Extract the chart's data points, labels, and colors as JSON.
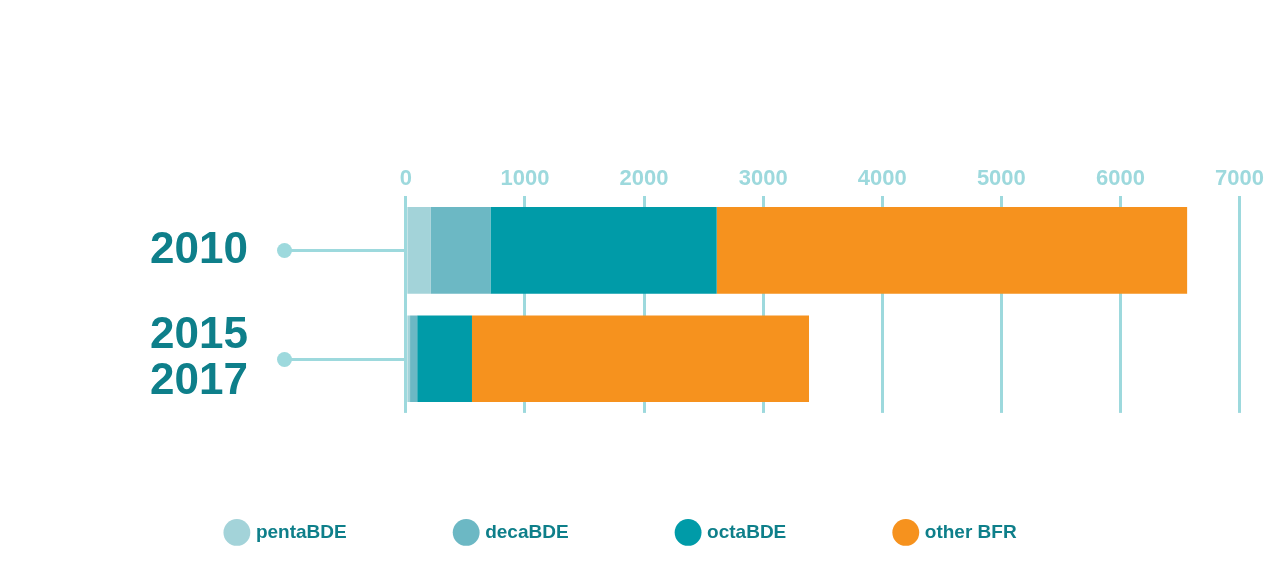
{
  "chart_data": {
    "type": "bar",
    "orientation": "horizontal",
    "stacked": true,
    "categories": [
      "2010",
      "2015\n2017"
    ],
    "series": [
      {
        "name": "pentaBDE",
        "color": "#a3d3d9",
        "values": [
          210,
          35
        ]
      },
      {
        "name": "decaBDE",
        "color": "#6cb8c4",
        "values": [
          500,
          60
        ]
      },
      {
        "name": "octaBDE",
        "color": "#009ba8",
        "values": [
          1900,
          460
        ]
      },
      {
        "name": "other BFR",
        "color": "#f6921e",
        "values": [
          3950,
          2830
        ]
      }
    ],
    "xlim": [
      0,
      7000
    ],
    "xticks": [
      0,
      1000,
      2000,
      3000,
      4000,
      5000,
      6000,
      7000
    ],
    "grid": "x",
    "legend": "bottom"
  }
}
